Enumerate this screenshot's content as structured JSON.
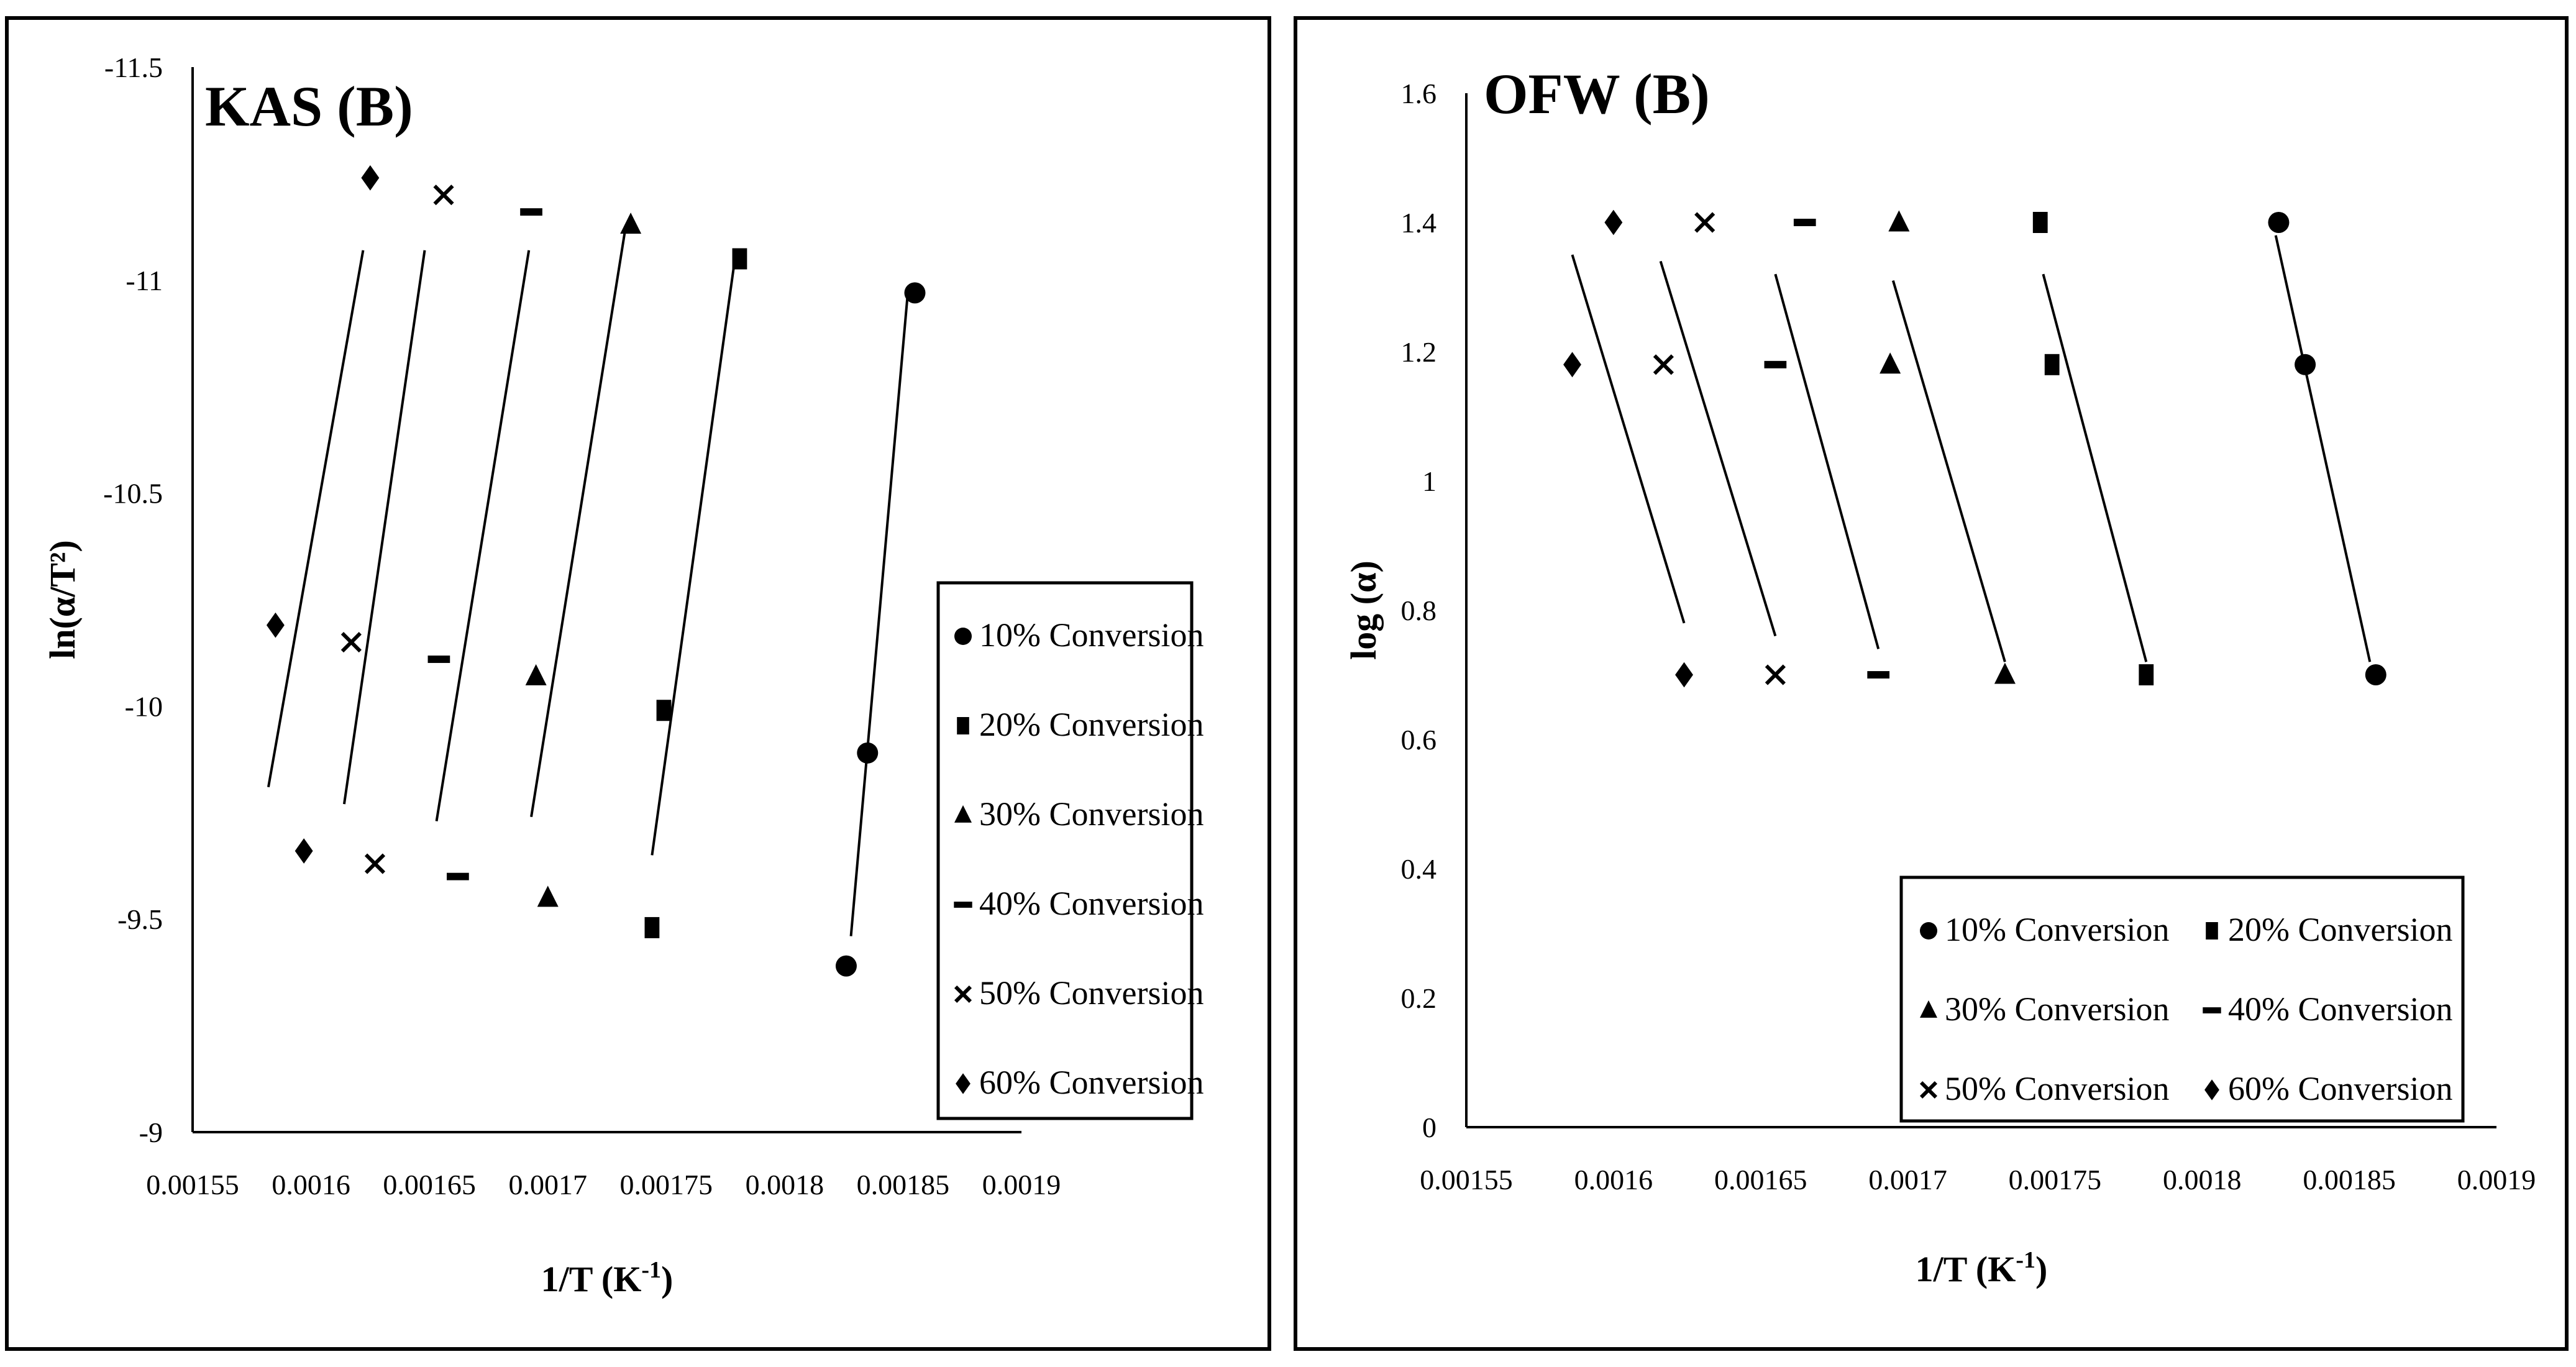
{
  "chart_data": [
    {
      "type": "scatter",
      "title": "KAS (B)",
      "xlabel": "1/T (K-1)",
      "ylabel": "ln(α/T²)",
      "xlim": [
        0.00155,
        0.0019
      ],
      "ylim": [
        -9,
        -11.5
      ],
      "y_axis_reversed": true,
      "x_ticks": [
        "0.00155",
        "0.0016",
        "0.00165",
        "0.0017",
        "0.00175",
        "0.0018",
        "0.00185",
        "0.0019"
      ],
      "y_ticks": [
        "-9",
        "-9.5",
        "-10",
        "-10.5",
        "-11",
        "-11.5"
      ],
      "legend_position": "right",
      "legend_columns": 1,
      "series": [
        {
          "name": "10% Conversion",
          "marker": "circle",
          "points": [
            [
              0.001826,
              -9.39
            ],
            [
              0.001835,
              -9.89
            ],
            [
              0.001855,
              -10.97
            ]
          ],
          "fit": [
            [
              0.001828,
              -9.46
            ],
            [
              0.001852,
              -10.97
            ]
          ]
        },
        {
          "name": "20% Conversion",
          "marker": "square",
          "points": [
            [
              0.001744,
              -9.48
            ],
            [
              0.001749,
              -9.99
            ],
            [
              0.001781,
              -11.05
            ]
          ],
          "fit": [
            [
              0.001744,
              -9.65
            ],
            [
              0.001779,
              -11.05
            ]
          ]
        },
        {
          "name": "30% Conversion",
          "marker": "triangle",
          "points": [
            [
              0.0017,
              -9.55
            ],
            [
              0.001695,
              -10.07
            ],
            [
              0.001735,
              -11.13
            ]
          ],
          "fit": [
            [
              0.001693,
              -9.74
            ],
            [
              0.001733,
              -11.13
            ]
          ]
        },
        {
          "name": "40% Conversion",
          "marker": "dash",
          "points": [
            [
              0.001662,
              -9.6
            ],
            [
              0.001654,
              -10.11
            ],
            [
              0.001693,
              -11.16
            ]
          ],
          "fit": [
            [
              0.001653,
              -9.73
            ],
            [
              0.001692,
              -11.07
            ]
          ]
        },
        {
          "name": "50% Conversion",
          "marker": "x",
          "points": [
            [
              0.001627,
              -9.63
            ],
            [
              0.001617,
              -10.15
            ],
            [
              0.001656,
              -11.2
            ]
          ],
          "fit": [
            [
              0.001614,
              -9.77
            ],
            [
              0.001648,
              -11.07
            ]
          ]
        },
        {
          "name": "60% Conversion",
          "marker": "diamond",
          "points": [
            [
              0.001597,
              -9.66
            ],
            [
              0.001585,
              -10.19
            ],
            [
              0.001625,
              -11.24
            ]
          ],
          "fit": [
            [
              0.001582,
              -9.81
            ],
            [
              0.001622,
              -11.07
            ]
          ]
        }
      ]
    },
    {
      "type": "scatter",
      "title": "OFW (B)",
      "xlabel": "1/T (K-1)",
      "ylabel": "log (α)",
      "xlim": [
        0.00155,
        0.0019
      ],
      "ylim": [
        0,
        1.6
      ],
      "x_ticks": [
        "0.00155",
        "0.0016",
        "0.00165",
        "0.0017",
        "0.00175",
        "0.0018",
        "0.00185",
        "0.0019"
      ],
      "y_ticks": [
        "0",
        "0.2",
        "0.4",
        "0.6",
        "0.8",
        "1",
        "1.2",
        "1.4",
        "1.6"
      ],
      "legend_position": "bottom-right",
      "legend_columns": 2,
      "series": [
        {
          "name": "10% Conversion",
          "marker": "circle",
          "points": [
            [
              0.001826,
              1.4
            ],
            [
              0.001835,
              1.18
            ],
            [
              0.001859,
              0.7
            ]
          ],
          "fit": [
            [
              0.001825,
              1.38
            ],
            [
              0.001857,
              0.72
            ]
          ]
        },
        {
          "name": "20% Conversion",
          "marker": "square",
          "points": [
            [
              0.001745,
              1.4
            ],
            [
              0.001749,
              1.18
            ],
            [
              0.001781,
              0.7
            ]
          ],
          "fit": [
            [
              0.001746,
              1.32
            ],
            [
              0.001781,
              0.72
            ]
          ]
        },
        {
          "name": "30% Conversion",
          "marker": "triangle",
          "points": [
            [
              0.001697,
              1.4
            ],
            [
              0.001694,
              1.18
            ],
            [
              0.001733,
              0.7
            ]
          ],
          "fit": [
            [
              0.001695,
              1.31
            ],
            [
              0.001733,
              0.72
            ]
          ]
        },
        {
          "name": "40% Conversion",
          "marker": "dash",
          "points": [
            [
              0.001665,
              1.4
            ],
            [
              0.001655,
              1.18
            ],
            [
              0.00169,
              0.7
            ]
          ],
          "fit": [
            [
              0.001655,
              1.32
            ],
            [
              0.00169,
              0.74
            ]
          ]
        },
        {
          "name": "50% Conversion",
          "marker": "x",
          "points": [
            [
              0.001631,
              1.4
            ],
            [
              0.001617,
              1.18
            ],
            [
              0.001655,
              0.7
            ]
          ],
          "fit": [
            [
              0.001616,
              1.34
            ],
            [
              0.001655,
              0.76
            ]
          ]
        },
        {
          "name": "60% Conversion",
          "marker": "diamond",
          "points": [
            [
              0.0016,
              1.4
            ],
            [
              0.001586,
              1.18
            ],
            [
              0.001624,
              0.7
            ]
          ],
          "fit": [
            [
              0.001586,
              1.35
            ],
            [
              0.001624,
              0.78
            ]
          ]
        }
      ]
    }
  ]
}
